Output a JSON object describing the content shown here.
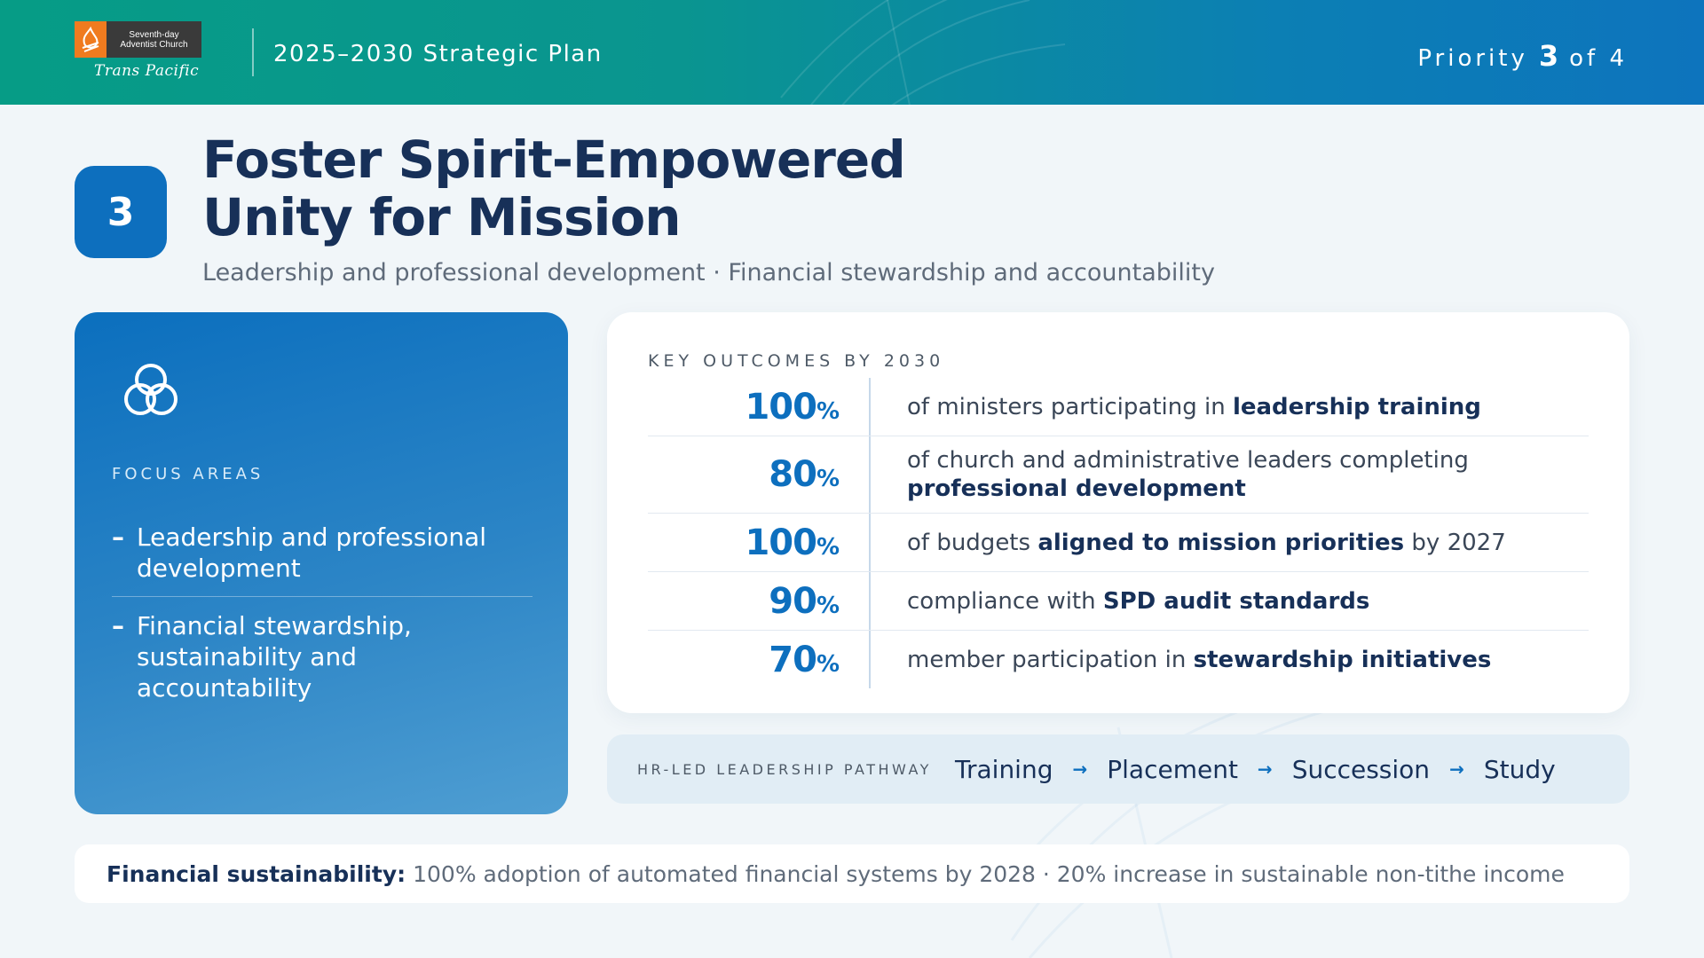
{
  "header": {
    "logo_line1": "Seventh-day",
    "logo_line2": "Adventist Church",
    "logo_script": "Trans Pacific",
    "title": "2025–2030 Strategic Plan",
    "priority_word": "Priority",
    "priority_num": "3",
    "priority_of": "of 4"
  },
  "title_block": {
    "number": "3",
    "title_line1": "Foster Spirit-Empowered",
    "title_line2": "Unity for Mission",
    "subtitle": "Leadership and professional development · Financial stewardship and accountability"
  },
  "focus": {
    "icon": "three-circles-icon",
    "label": "FOCUS AREAS",
    "items": [
      {
        "dash": "–",
        "text": "Leadership and professional development"
      },
      {
        "dash": "–",
        "text": "Financial stewardship, sustainability and accountability"
      }
    ]
  },
  "outcomes": {
    "label": "KEY OUTCOMES BY 2030",
    "rows": [
      {
        "value": "100",
        "unit": "%",
        "pre": "of ministers participating in ",
        "bold": "leadership training",
        "post": ""
      },
      {
        "value": "80",
        "unit": "%",
        "pre": "of church and administrative leaders completing ",
        "bold": "professional development",
        "post": ""
      },
      {
        "value": "100",
        "unit": "%",
        "pre": "of budgets ",
        "bold": "aligned to mission priorities",
        "post": " by 2027"
      },
      {
        "value": "90",
        "unit": "%",
        "pre": "compliance with ",
        "bold": "SPD audit standards",
        "post": ""
      },
      {
        "value": "70",
        "unit": "%",
        "pre": "member participation in ",
        "bold": "stewardship initiatives",
        "post": ""
      }
    ]
  },
  "pathway": {
    "label": "HR-LED LEADERSHIP PATHWAY",
    "arrow": "→",
    "steps": [
      "Training",
      "Placement",
      "Succession",
      "Study"
    ]
  },
  "bottom": {
    "lead": "Financial sustainability:",
    "text": "100% adoption of automated financial systems by 2028 · 20% increase in sustainable non-tithe income"
  },
  "colors": {
    "accent": "#0d6fbe",
    "navy": "#173058",
    "header_start": "#069c86",
    "header_end": "#0d74bd"
  }
}
